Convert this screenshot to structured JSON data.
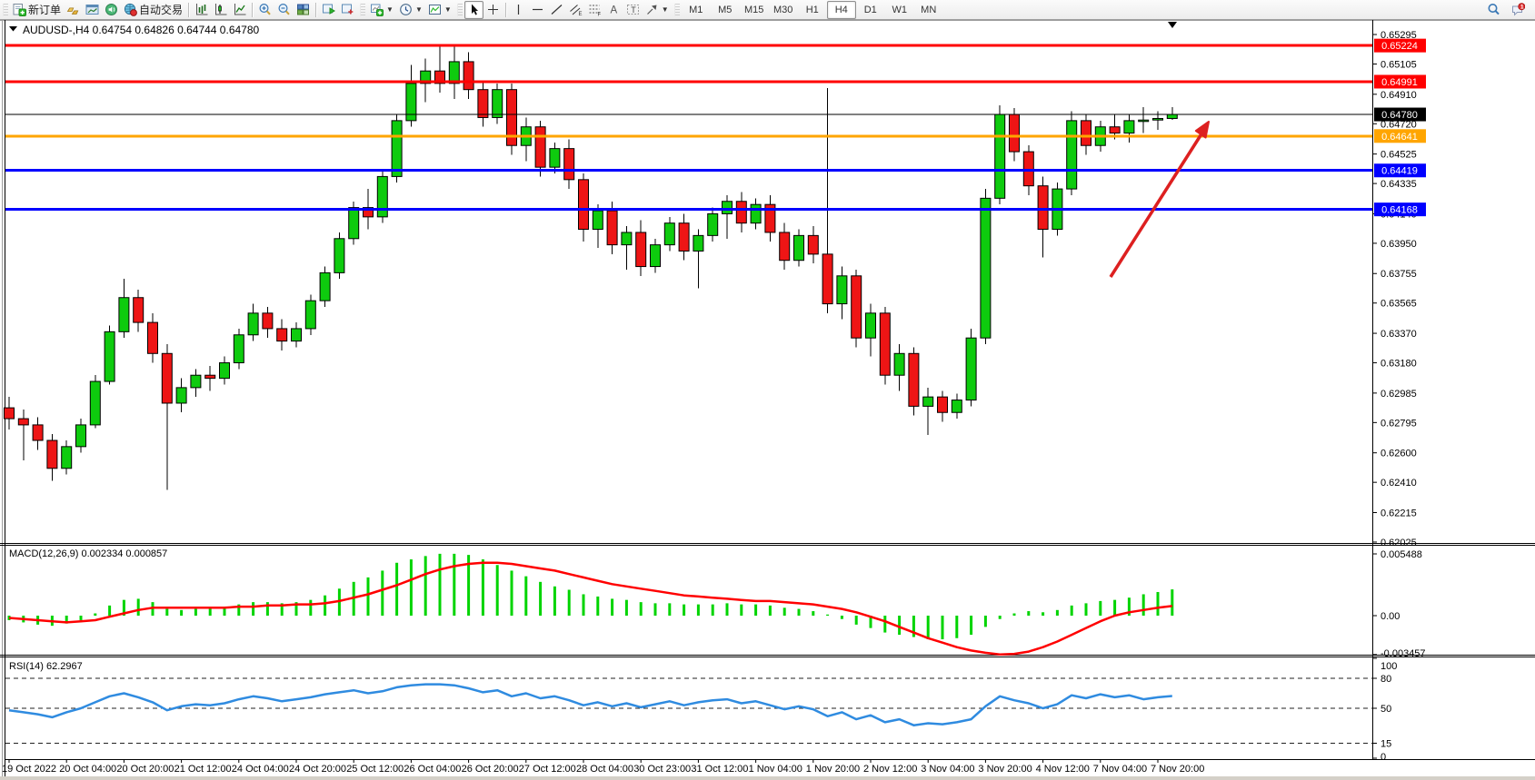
{
  "toolbar": {
    "new_order_label": "新订单",
    "autotrade_label": "自动交易",
    "timeframes": [
      "M1",
      "M5",
      "M15",
      "M30",
      "H1",
      "H4",
      "D1",
      "W1",
      "MN"
    ],
    "active_timeframe": "H4",
    "badge_count": "1",
    "groups": [
      {
        "items": [
          {
            "icon": "new-order-icon",
            "label": "new_order_label"
          },
          {
            "icon": "gold-bars-icon"
          },
          {
            "icon": "market-watch-icon"
          },
          {
            "icon": "sound-icon"
          },
          {
            "icon": "autotrading-icon",
            "label": "autotrade_label"
          }
        ]
      },
      {
        "items": [
          {
            "icon": "bar-chart-icon"
          },
          {
            "icon": "candlestick-chart-icon"
          },
          {
            "icon": "line-chart-icon"
          }
        ]
      },
      {
        "items": [
          {
            "icon": "zoom-in-icon"
          },
          {
            "icon": "zoom-out-icon"
          },
          {
            "icon": "tile-windows-icon"
          }
        ]
      },
      {
        "items": [
          {
            "icon": "arrange-charts-icon"
          },
          {
            "icon": "arrange-charts-alt-icon"
          }
        ]
      },
      {
        "items": [
          {
            "icon": "new-chart-icon",
            "dropdown": true
          },
          {
            "icon": "periods-icon",
            "dropdown": true
          },
          {
            "icon": "indicators-icon",
            "dropdown": true
          }
        ]
      },
      {
        "items": [
          {
            "icon": "cursor-icon",
            "active": true
          },
          {
            "icon": "crosshair-icon"
          }
        ]
      },
      {
        "items": [
          {
            "icon": "vertical-line-icon"
          },
          {
            "icon": "horizontal-line-icon"
          },
          {
            "icon": "trendline-icon"
          },
          {
            "icon": "channel-icon"
          },
          {
            "icon": "fibonacci-icon"
          },
          {
            "icon": "text-icon"
          },
          {
            "icon": "label-icon"
          },
          {
            "icon": "shapes-icon",
            "dropdown": true
          }
        ]
      }
    ]
  },
  "chart": {
    "symbol_title": "AUDUSD-,H4",
    "ohlc_line": "0.64754 0.64826 0.64744 0.64780",
    "colors": {
      "bull": "#0ecb0e",
      "bear": "#ee1515",
      "wick": "#000000",
      "resistance": "#ff0000",
      "support": "#0000ff",
      "pivot": "#ffa500",
      "current_price": "#000000",
      "macd_hist": "#00d400",
      "macd_signal": "#ff0000",
      "rsi_line": "#2f8be0",
      "arrow": "#dd2020"
    },
    "price_axis_ticks": [
      "0.65295",
      "0.65105",
      "0.64910",
      "0.64720",
      "0.64525",
      "0.64335",
      "0.64140",
      "0.63950",
      "0.63755",
      "0.63565",
      "0.63370",
      "0.63180",
      "0.62985",
      "0.62795",
      "0.62600",
      "0.62410",
      "0.62215",
      "0.62025"
    ],
    "levels": [
      {
        "label": "0.65224",
        "value": 0.65224,
        "color": "#ff0000",
        "width": 3,
        "kind": "resistance-line"
      },
      {
        "label": "0.64991",
        "value": 0.64991,
        "color": "#ff0000",
        "width": 3,
        "kind": "resistance-line"
      },
      {
        "label": "0.64780",
        "value": 0.6478,
        "color": "#000000",
        "width": 1,
        "kind": "current-price-line"
      },
      {
        "label": "0.64641",
        "value": 0.64641,
        "color": "#ffa500",
        "width": 3,
        "kind": "pivot-line"
      },
      {
        "label": "0.64419",
        "value": 0.64419,
        "color": "#0000ff",
        "width": 3,
        "kind": "support-line"
      },
      {
        "label": "0.64168",
        "value": 0.64168,
        "color": "#0000ff",
        "width": 3,
        "kind": "support-line"
      }
    ],
    "time_axis_labels": [
      "19 Oct 2022",
      "20 Oct 04:00",
      "20 Oct 20:00",
      "21 Oct 12:00",
      "24 Oct 04:00",
      "24 Oct 20:00",
      "25 Oct 12:00",
      "26 Oct 04:00",
      "26 Oct 20:00",
      "27 Oct 12:00",
      "28 Oct 04:00",
      "30 Oct 23:00",
      "31 Oct 12:00",
      "1 Nov 04:00",
      "1 Nov 20:00",
      "2 Nov 12:00",
      "3 Nov 04:00",
      "3 Nov 20:00",
      "4 Nov 12:00",
      "7 Nov 04:00",
      "7 Nov 20:00"
    ]
  },
  "macd_panel": {
    "label": "MACD(12,26,9)",
    "value": "0.002334",
    "signal_value": "0.000857",
    "axis_ticks": [
      {
        "label": "0.005488",
        "v": 0.005488
      },
      {
        "label": "0.00",
        "v": 0
      },
      {
        "label": "-0.003457",
        "v": -0.003457
      }
    ]
  },
  "rsi_panel": {
    "label": "RSI(14)",
    "value": "62.2967",
    "axis_ticks": [
      {
        "label": "100",
        "v": 100
      },
      {
        "label": "80",
        "v": 80
      },
      {
        "label": "50",
        "v": 50
      },
      {
        "label": "15",
        "v": 15
      },
      {
        "label": "0",
        "v": 0
      }
    ],
    "dashed_levels": [
      80,
      50,
      15
    ]
  },
  "chart_data": {
    "type": "candlestick",
    "symbol": "AUDUSD-",
    "timeframe": "H4",
    "price_range": [
      0.62025,
      0.65295
    ],
    "candles": [
      [
        0.6289,
        0.6296,
        0.6275,
        0.6282
      ],
      [
        0.6282,
        0.6288,
        0.6255,
        0.6278
      ],
      [
        0.6278,
        0.6283,
        0.6262,
        0.6268
      ],
      [
        0.6268,
        0.6272,
        0.6242,
        0.625
      ],
      [
        0.625,
        0.6268,
        0.6246,
        0.6264
      ],
      [
        0.6264,
        0.6282,
        0.626,
        0.6278
      ],
      [
        0.6278,
        0.631,
        0.6276,
        0.6306
      ],
      [
        0.6306,
        0.6342,
        0.6304,
        0.6338
      ],
      [
        0.6338,
        0.6372,
        0.6334,
        0.636
      ],
      [
        0.636,
        0.6365,
        0.6338,
        0.6344
      ],
      [
        0.6344,
        0.635,
        0.6318,
        0.6324
      ],
      [
        0.6324,
        0.633,
        0.6236,
        0.6292
      ],
      [
        0.6292,
        0.6308,
        0.6286,
        0.6302
      ],
      [
        0.6302,
        0.6314,
        0.6296,
        0.631
      ],
      [
        0.631,
        0.6316,
        0.63,
        0.6308
      ],
      [
        0.6308,
        0.6322,
        0.6304,
        0.6318
      ],
      [
        0.6318,
        0.634,
        0.6314,
        0.6336
      ],
      [
        0.6336,
        0.6356,
        0.6332,
        0.635
      ],
      [
        0.635,
        0.6354,
        0.6334,
        0.634
      ],
      [
        0.634,
        0.6346,
        0.6326,
        0.6332
      ],
      [
        0.6332,
        0.6344,
        0.6328,
        0.634
      ],
      [
        0.634,
        0.6362,
        0.6336,
        0.6358
      ],
      [
        0.6358,
        0.638,
        0.6354,
        0.6376
      ],
      [
        0.6376,
        0.6402,
        0.6372,
        0.6398
      ],
      [
        0.6398,
        0.6422,
        0.6394,
        0.6418
      ],
      [
        0.6418,
        0.643,
        0.6404,
        0.6412
      ],
      [
        0.6412,
        0.6442,
        0.6408,
        0.6438
      ],
      [
        0.6438,
        0.6478,
        0.6434,
        0.6474
      ],
      [
        0.6474,
        0.651,
        0.647,
        0.6498
      ],
      [
        0.6498,
        0.6514,
        0.6486,
        0.6506
      ],
      [
        0.6506,
        0.65225,
        0.6492,
        0.6498
      ],
      [
        0.6498,
        0.6523,
        0.6488,
        0.6512
      ],
      [
        0.6512,
        0.6518,
        0.6488,
        0.6494
      ],
      [
        0.6494,
        0.65,
        0.647,
        0.6476
      ],
      [
        0.6476,
        0.6498,
        0.6472,
        0.6494
      ],
      [
        0.6494,
        0.6498,
        0.6452,
        0.6458
      ],
      [
        0.6458,
        0.6476,
        0.6448,
        0.647
      ],
      [
        0.647,
        0.6474,
        0.6438,
        0.6444
      ],
      [
        0.6444,
        0.646,
        0.644,
        0.6456
      ],
      [
        0.6456,
        0.6462,
        0.643,
        0.6436
      ],
      [
        0.6436,
        0.644,
        0.6396,
        0.6404
      ],
      [
        0.6404,
        0.642,
        0.6392,
        0.6416
      ],
      [
        0.6416,
        0.6422,
        0.6388,
        0.6394
      ],
      [
        0.6394,
        0.6406,
        0.6378,
        0.6402
      ],
      [
        0.6402,
        0.641,
        0.6374,
        0.638
      ],
      [
        0.638,
        0.6398,
        0.6376,
        0.6394
      ],
      [
        0.6394,
        0.6412,
        0.639,
        0.6408
      ],
      [
        0.6408,
        0.6414,
        0.6384,
        0.639
      ],
      [
        0.639,
        0.6404,
        0.6366,
        0.64
      ],
      [
        0.64,
        0.6418,
        0.6396,
        0.6414
      ],
      [
        0.6414,
        0.6426,
        0.6398,
        0.6422
      ],
      [
        0.6422,
        0.6428,
        0.6402,
        0.6408
      ],
      [
        0.6408,
        0.6424,
        0.6404,
        0.642
      ],
      [
        0.642,
        0.6426,
        0.6396,
        0.6402
      ],
      [
        0.6402,
        0.6408,
        0.6378,
        0.6384
      ],
      [
        0.6384,
        0.6404,
        0.638,
        0.64
      ],
      [
        0.64,
        0.6406,
        0.6382,
        0.6388
      ],
      [
        0.6388,
        0.6495,
        0.635,
        0.6356
      ],
      [
        0.6356,
        0.638,
        0.6346,
        0.6374
      ],
      [
        0.6374,
        0.6378,
        0.6328,
        0.6334
      ],
      [
        0.6334,
        0.6356,
        0.6322,
        0.635
      ],
      [
        0.635,
        0.6354,
        0.6304,
        0.631
      ],
      [
        0.631,
        0.633,
        0.63,
        0.6324
      ],
      [
        0.6324,
        0.6328,
        0.6284,
        0.629
      ],
      [
        0.629,
        0.6302,
        0.62715,
        0.6296
      ],
      [
        0.6296,
        0.63,
        0.628,
        0.6286
      ],
      [
        0.6286,
        0.6298,
        0.6282,
        0.6294
      ],
      [
        0.6294,
        0.634,
        0.629,
        0.6334
      ],
      [
        0.6334,
        0.643,
        0.633,
        0.6424
      ],
      [
        0.6424,
        0.6484,
        0.642,
        0.6478
      ],
      [
        0.6478,
        0.6482,
        0.6448,
        0.6454
      ],
      [
        0.6454,
        0.6458,
        0.6426,
        0.6432
      ],
      [
        0.6432,
        0.6438,
        0.6386,
        0.6404
      ],
      [
        0.6404,
        0.6434,
        0.64,
        0.643
      ],
      [
        0.643,
        0.648,
        0.6426,
        0.6474
      ],
      [
        0.6474,
        0.6478,
        0.6452,
        0.6458
      ],
      [
        0.6458,
        0.6474,
        0.6454,
        0.647
      ],
      [
        0.647,
        0.6478,
        0.6462,
        0.6466
      ],
      [
        0.6466,
        0.6478,
        0.646,
        0.6474
      ],
      [
        0.6474,
        0.64826,
        0.6466,
        0.64744
      ],
      [
        0.64744,
        0.648,
        0.6468,
        0.64754
      ],
      [
        0.64754,
        0.64826,
        0.64744,
        0.6478
      ]
    ],
    "macd_histogram": [
      -0.0004,
      -0.0006,
      -0.0008,
      -0.0009,
      -0.0007,
      -0.0004,
      0.0002,
      0.0009,
      0.0014,
      0.0015,
      0.0012,
      0.0006,
      0.0005,
      0.0006,
      0.0007,
      0.0008,
      0.001,
      0.0012,
      0.0012,
      0.0011,
      0.0012,
      0.0014,
      0.0018,
      0.0024,
      0.003,
      0.0034,
      0.004,
      0.0047,
      0.005,
      0.0053,
      0.0055,
      0.0055,
      0.0054,
      0.005,
      0.0045,
      0.004,
      0.0035,
      0.003,
      0.0026,
      0.0023,
      0.0019,
      0.0017,
      0.0015,
      0.0014,
      0.0012,
      0.0011,
      0.0011,
      0.001,
      0.001,
      0.001,
      0.0011,
      0.001,
      0.001,
      0.0009,
      0.0007,
      0.0006,
      0.0004,
      0.0001,
      -0.0003,
      -0.0008,
      -0.0011,
      -0.0015,
      -0.0017,
      -0.0019,
      -0.0021,
      -0.0021,
      -0.002,
      -0.0017,
      -0.001,
      -0.0003,
      0.0002,
      0.0004,
      0.0003,
      0.0005,
      0.0009,
      0.0011,
      0.0013,
      0.0014,
      0.0016,
      0.0019,
      0.0021,
      0.002334
    ],
    "macd_signal": [
      -0.0002,
      -0.0003,
      -0.0004,
      -0.0005,
      -0.0006,
      -0.0005,
      -0.0004,
      -0.0001,
      0.0002,
      0.0005,
      0.0007,
      0.0007,
      0.0007,
      0.0007,
      0.0007,
      0.0007,
      0.0008,
      0.0008,
      0.0009,
      0.0009,
      0.001,
      0.001,
      0.0011,
      0.0013,
      0.0016,
      0.0019,
      0.0023,
      0.0027,
      0.0032,
      0.0037,
      0.0041,
      0.0044,
      0.0046,
      0.0047,
      0.0047,
      0.0046,
      0.0044,
      0.0042,
      0.004,
      0.0037,
      0.0034,
      0.0031,
      0.0028,
      0.0026,
      0.0024,
      0.0022,
      0.002,
      0.0018,
      0.0017,
      0.0016,
      0.0015,
      0.0014,
      0.0013,
      0.0013,
      0.0012,
      0.0011,
      0.001,
      0.0008,
      0.0006,
      0.0003,
      -0.0001,
      -0.0005,
      -0.001,
      -0.0015,
      -0.002,
      -0.0024,
      -0.0028,
      -0.0031,
      -0.0033,
      -0.00345,
      -0.0034,
      -0.0032,
      -0.0028,
      -0.0023,
      -0.0017,
      -0.0011,
      -0.0005,
      0.0,
      0.0003,
      0.0005,
      0.0007,
      0.000857
    ],
    "rsi": [
      48,
      46,
      44,
      41,
      46,
      50,
      56,
      62,
      65,
      61,
      56,
      48,
      52,
      54,
      53,
      55,
      59,
      62,
      60,
      57,
      59,
      61,
      64,
      66,
      68,
      65,
      67,
      71,
      73,
      74,
      74,
      73,
      70,
      66,
      68,
      62,
      65,
      60,
      62,
      58,
      53,
      56,
      52,
      55,
      51,
      54,
      57,
      53,
      56,
      58,
      59,
      55,
      57,
      53,
      49,
      52,
      49,
      42,
      46,
      39,
      43,
      36,
      39,
      33,
      35,
      34,
      36,
      39,
      52,
      62,
      58,
      55,
      50,
      54,
      63,
      60,
      64,
      61,
      63,
      59,
      61,
      62.3
    ]
  }
}
